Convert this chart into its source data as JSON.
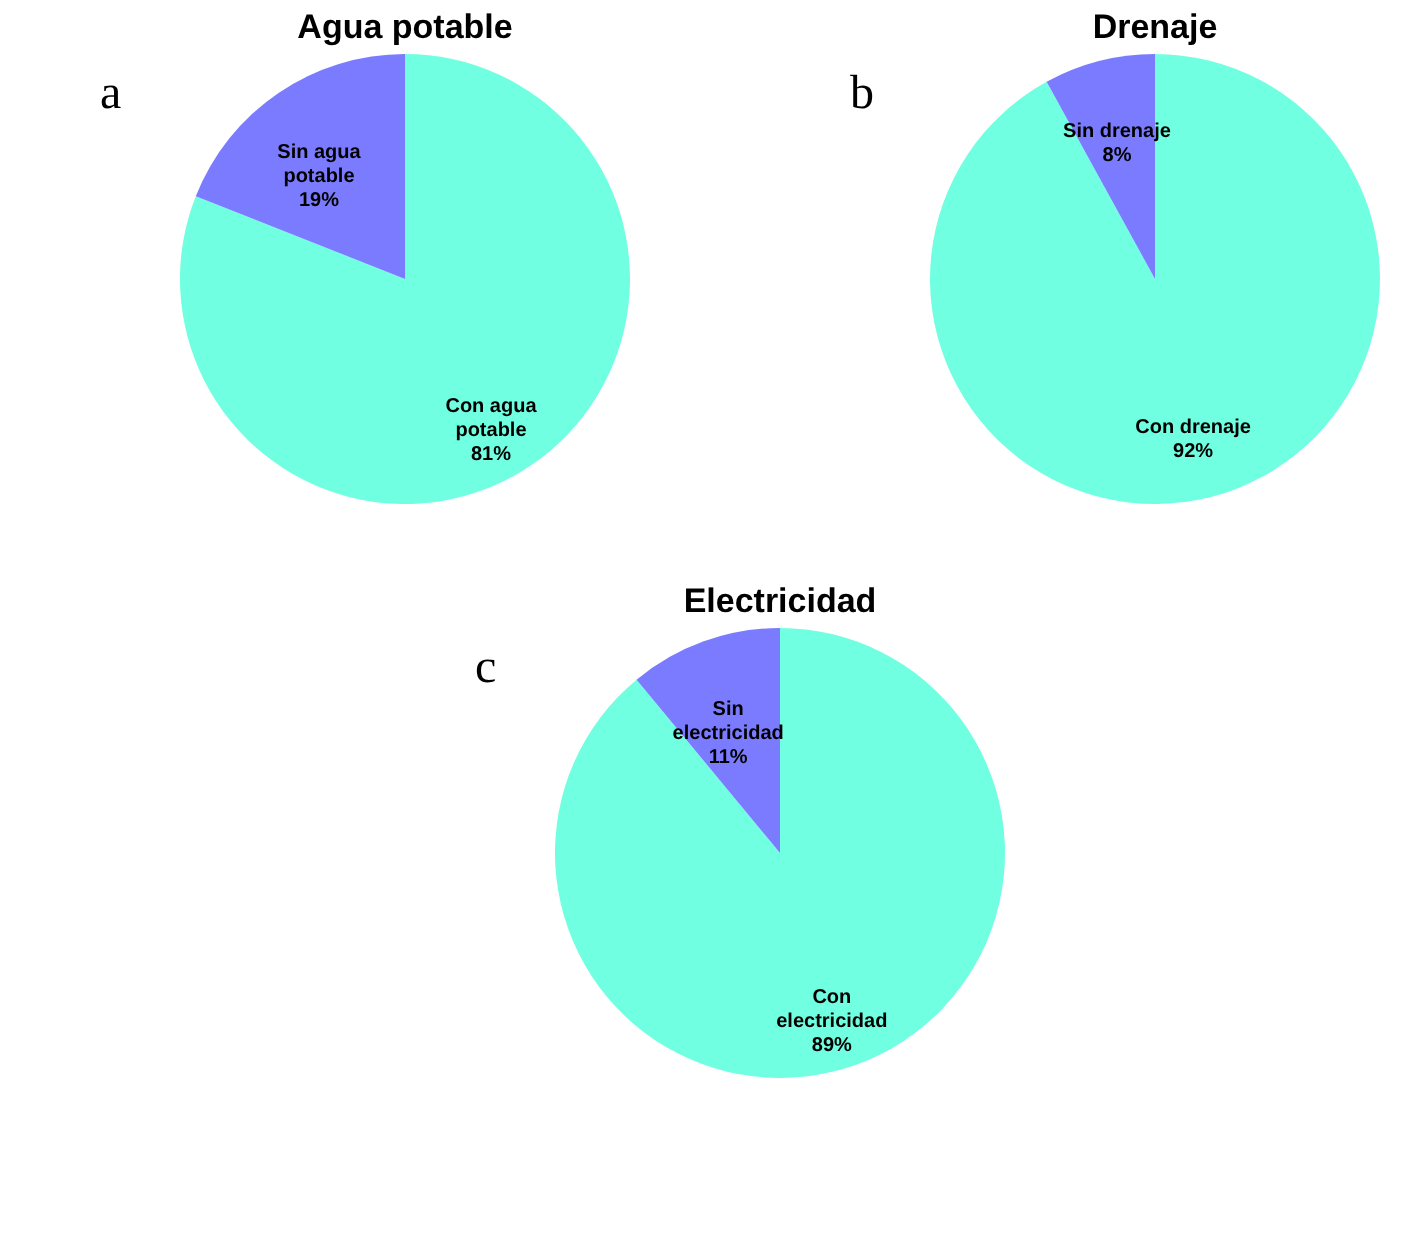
{
  "chart_data": [
    {
      "type": "pie",
      "title": "Agua potable",
      "categories": [
        "Con agua potable",
        "Sin agua potable"
      ],
      "values": [
        81,
        19
      ],
      "colors": [
        "#70ffe0",
        "#7b7bff"
      ],
      "value_labels": [
        "81%",
        "19%"
      ],
      "annotations": [
        "a"
      ]
    },
    {
      "type": "pie",
      "title": "Drenaje",
      "categories": [
        "Con drenaje",
        "Sin drenaje"
      ],
      "values": [
        92,
        8
      ],
      "colors": [
        "#70ffe0",
        "#7b7bff"
      ],
      "value_labels": [
        "92%",
        "8%"
      ],
      "annotations": [
        "b"
      ]
    },
    {
      "type": "pie",
      "title": "Electricidad",
      "categories": [
        "Con electricidad",
        "Sin electricidad"
      ],
      "values": [
        89,
        11
      ],
      "colors": [
        "#70ffe0",
        "#7b7bff"
      ],
      "value_labels": [
        "89%",
        "11%"
      ],
      "annotations": [
        "c"
      ]
    }
  ]
}
